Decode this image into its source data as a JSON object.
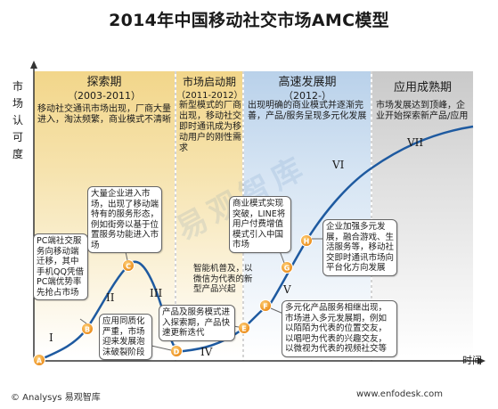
{
  "title": "2014年中国移动社交市场AMC模型",
  "y_axis_label": "市场认可度",
  "x_axis_label": "时间",
  "phases": [
    {
      "name": "探索期",
      "years": "（2003-2011）",
      "desc": "移动社交通讯市场出现，厂商大量进入，淘汰频繁，商业模式不清晰"
    },
    {
      "name": "市场启动期",
      "years": "（2011-2012）",
      "desc": "新型模式的厂商出现，移动社交即时通讯成为移动用户的刚性需求"
    },
    {
      "name": "高速发展期",
      "years": "（2012-）",
      "desc": "出现明确的商业模式并逐渐完善，产品/服务呈现多元化发展"
    },
    {
      "name": "应用成熟期",
      "years": "",
      "desc": "市场发展达到顶峰，企业开始探索新产品/应用"
    }
  ],
  "points": [
    "A",
    "B",
    "C",
    "D",
    "E",
    "F",
    "G",
    "H"
  ],
  "stages": [
    "I",
    "II",
    "III",
    "IV",
    "V",
    "VI",
    "VII"
  ],
  "notes": {
    "b": "PC端社交服务向移动端迁移，其中手机QQ凭借PC端优势率先抢占市场",
    "c": "大量企业进入市场，出现了移动端特有的服务形态，例如街旁以基于位置服务功能进入市场",
    "d": "应用同质化严重，市场迎来发展泡沫破裂阶段",
    "e1": "智能机普及，以微信为代表的新型产品兴起",
    "e2": "产品及服务模式进入探索期，产品快速更新迭代",
    "f": "多元化产品服务相继出现，市场进入多元发展期，例如以陌陌为代表的位置交友，以唱吧为代表的兴趣交友，以微视为代表的视频社交等",
    "g": "商业模式实现突破，LINE将用户付费增值模式引入中国市场",
    "h": "企业加强多元发展，融合游戏、生活服务等，移动社交即时通讯市场向平台化方向发展"
  },
  "footer": {
    "left": "© Analysys 易观智库",
    "right": "www.enfodesk.com"
  },
  "watermark": "易观智库",
  "colors": {
    "explore_band": "#f6e3ae",
    "start_band": "#f6e3ae",
    "growth_band": "#d5e4f3",
    "mature_band": "#dcdcdc",
    "curve": "#1e5aa0",
    "point_fill": "#f39a1e"
  }
}
